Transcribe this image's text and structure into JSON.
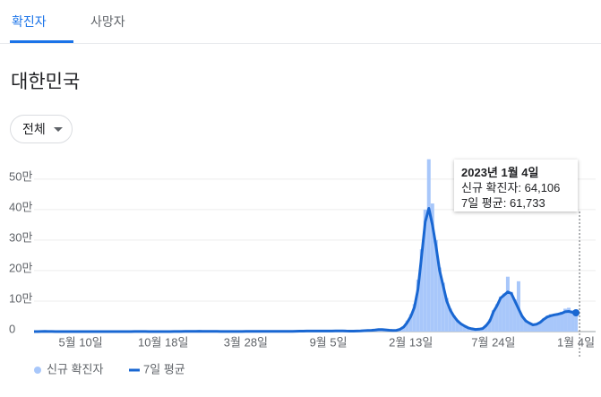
{
  "tabs": [
    "확진자",
    "사망자"
  ],
  "heading": "대한민국",
  "filter": "전체",
  "chart_data": {
    "type": "bar-line",
    "categories": [
      null,
      null,
      null,
      null,
      null,
      null,
      null,
      null,
      null,
      null,
      null,
      null,
      null,
      "5월 10일",
      null,
      null,
      null,
      null,
      null,
      null,
      null,
      null,
      null,
      null,
      null,
      null,
      null,
      null,
      null,
      null,
      null,
      null,
      null,
      null,
      null,
      null,
      "10월 18일",
      null,
      null,
      null,
      null,
      null,
      null,
      null,
      null,
      null,
      null,
      null,
      null,
      null,
      null,
      null,
      null,
      null,
      null,
      null,
      null,
      null,
      null,
      "3월 28일",
      null,
      null,
      null,
      null,
      null,
      null,
      null,
      null,
      null,
      null,
      null,
      null,
      null,
      null,
      null,
      null,
      null,
      null,
      null,
      null,
      null,
      null,
      "9월 5일",
      null,
      null,
      null,
      null,
      null,
      null,
      null,
      null,
      null,
      null,
      null,
      null,
      null,
      null,
      null,
      null,
      null,
      null,
      null,
      null,
      null,
      null,
      "2월 13일",
      null,
      null,
      null,
      null,
      null,
      null,
      null,
      null,
      null,
      null,
      null,
      null,
      null,
      null,
      null,
      null,
      null,
      null,
      null,
      null,
      null,
      null,
      "7월 24일",
      null,
      null,
      null,
      null,
      null,
      null,
      null,
      null,
      null,
      null,
      null,
      null,
      null,
      null,
      null,
      null,
      null,
      null,
      null,
      null,
      null,
      null,
      "1월 4일"
    ],
    "series": [
      {
        "name": "신규 확진자",
        "color": "#a8c7fa",
        "kind": "bar",
        "values": [
          0,
          30,
          400,
          700,
          450,
          150,
          100,
          80,
          50,
          30,
          15,
          10,
          8,
          30,
          20,
          40,
          50,
          40,
          45,
          50,
          60,
          50,
          60,
          40,
          40,
          50,
          40,
          50,
          250,
          350,
          200,
          120,
          110,
          70,
          80,
          60,
          90,
          110,
          130,
          200,
          300,
          350,
          550,
          650,
          800,
          1050,
          1100,
          900,
          1000,
          700,
          550,
          450,
          400,
          350,
          450,
          400,
          450,
          420,
          460,
          500,
          600,
          650,
          700,
          600,
          650,
          550,
          600,
          650,
          500,
          550,
          600,
          650,
          800,
          1300,
          1600,
          1700,
          1800,
          1900,
          1650,
          1850,
          1750,
          2000,
          1900,
          2000,
          2400,
          2600,
          2200,
          1700,
          1400,
          1600,
          2000,
          2300,
          3000,
          3700,
          4200,
          5200,
          7000,
          6200,
          5300,
          4100,
          3600,
          4400,
          8500,
          17000,
          36000,
          57000,
          90000,
          170000,
          270000,
          400000,
          565000,
          420000,
          300000,
          210000,
          160000,
          110000,
          75000,
          53000,
          38000,
          26000,
          19000,
          13000,
          9500,
          7200,
          8500,
          11000,
          23000,
          40000,
          70000,
          90000,
          115000,
          125000,
          180000,
          130000,
          105000,
          165000,
          52000,
          38000,
          30000,
          23000,
          26000,
          33000,
          43000,
          52000,
          57000,
          58000,
          60000,
          65000,
          75000,
          78000,
          70000,
          64106
        ]
      },
      {
        "name": "7일 평균",
        "color": "#1967d2",
        "kind": "line",
        "values": [
          3,
          20,
          300,
          600,
          400,
          150,
          100,
          80,
          50,
          30,
          15,
          10,
          8,
          20,
          25,
          30,
          40,
          45,
          40,
          45,
          50,
          55,
          50,
          45,
          40,
          40,
          45,
          40,
          200,
          300,
          250,
          150,
          100,
          80,
          70,
          70,
          80,
          100,
          120,
          180,
          250,
          330,
          480,
          600,
          700,
          950,
          1050,
          1000,
          950,
          800,
          600,
          450,
          400,
          380,
          420,
          400,
          420,
          430,
          440,
          480,
          560,
          600,
          650,
          620,
          600,
          580,
          560,
          600,
          550,
          500,
          550,
          600,
          750,
          1200,
          1500,
          1600,
          1700,
          1800,
          1700,
          1800,
          1800,
          1900,
          1800,
          1900,
          2100,
          2400,
          2300,
          1800,
          1500,
          1500,
          1900,
          2200,
          2800,
          3500,
          4000,
          5000,
          6500,
          6500,
          5500,
          4300,
          3800,
          4200,
          7500,
          15000,
          30000,
          50000,
          80000,
          140000,
          250000,
          360000,
          404000,
          350000,
          280000,
          200000,
          150000,
          100000,
          70000,
          50000,
          35000,
          25000,
          18000,
          12000,
          9000,
          7000,
          8000,
          10000,
          20000,
          35000,
          65000,
          85000,
          110000,
          120000,
          130000,
          125000,
          100000,
          75000,
          50000,
          35000,
          28000,
          22000,
          24000,
          30000,
          40000,
          48000,
          52000,
          55000,
          57000,
          60000,
          65000,
          66000,
          63000,
          61733
        ]
      }
    ],
    "ylim": [
      0,
      570000
    ],
    "yticks": [
      0,
      {
        "value": 100000,
        "label": "10만"
      },
      {
        "value": 200000,
        "label": "20만"
      },
      {
        "value": 300000,
        "label": "30만"
      },
      {
        "value": 400000,
        "label": "40만"
      },
      {
        "value": 500000,
        "label": "50만"
      }
    ],
    "grid": true,
    "tooltip": {
      "date": "2023년 1월 4일",
      "lines": [
        "신규 확진자: 64,106",
        "7일 평균: 61,733"
      ]
    }
  }
}
